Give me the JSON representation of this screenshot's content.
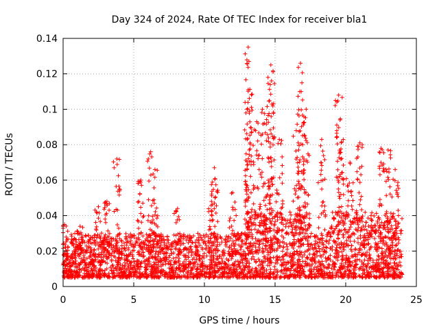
{
  "chart_data": {
    "type": "scatter",
    "title": "Day 324 of 2024, Rate Of TEC Index for receiver bla1",
    "xlabel": "GPS time / hours",
    "ylabel": "ROTI / TECUs",
    "xlim": [
      0,
      25
    ],
    "ylim": [
      0,
      0.14
    ],
    "x_ticks": [
      "0",
      "5",
      "10",
      "15",
      "20",
      "25"
    ],
    "y_ticks": [
      "0",
      "0.02",
      "0.04",
      "0.06",
      "0.08",
      "0.1",
      "0.12",
      "0.14"
    ],
    "grid": true,
    "marker": "+",
    "series": [
      {
        "name": "ROTI",
        "color": "#ff0000",
        "baseline_range": [
          0.005,
          0.03
        ],
        "x_range": [
          0,
          24
        ],
        "peaks": [
          {
            "x": 0.1,
            "y": 0.035
          },
          {
            "x": 1.2,
            "y": 0.034
          },
          {
            "x": 2.5,
            "y": 0.045
          },
          {
            "x": 3.1,
            "y": 0.048
          },
          {
            "x": 3.8,
            "y": 0.072
          },
          {
            "x": 5.5,
            "y": 0.06
          },
          {
            "x": 6.2,
            "y": 0.076
          },
          {
            "x": 6.5,
            "y": 0.066
          },
          {
            "x": 8.1,
            "y": 0.044
          },
          {
            "x": 10.5,
            "y": 0.048
          },
          {
            "x": 10.7,
            "y": 0.067
          },
          {
            "x": 12.0,
            "y": 0.053
          },
          {
            "x": 13.1,
            "y": 0.135
          },
          {
            "x": 13.15,
            "y": 0.127
          },
          {
            "x": 13.1,
            "y": 0.111
          },
          {
            "x": 13.7,
            "y": 0.093
          },
          {
            "x": 14.1,
            "y": 0.1
          },
          {
            "x": 14.5,
            "y": 0.118
          },
          {
            "x": 14.7,
            "y": 0.125
          },
          {
            "x": 14.75,
            "y": 0.116
          },
          {
            "x": 15.3,
            "y": 0.083
          },
          {
            "x": 16.5,
            "y": 0.088
          },
          {
            "x": 16.8,
            "y": 0.126
          },
          {
            "x": 16.85,
            "y": 0.11
          },
          {
            "x": 17.2,
            "y": 0.1
          },
          {
            "x": 18.3,
            "y": 0.083
          },
          {
            "x": 19.5,
            "y": 0.108
          },
          {
            "x": 19.6,
            "y": 0.094
          },
          {
            "x": 20.3,
            "y": 0.07
          },
          {
            "x": 21.0,
            "y": 0.081
          },
          {
            "x": 22.5,
            "y": 0.078
          },
          {
            "x": 23.0,
            "y": 0.077
          },
          {
            "x": 23.5,
            "y": 0.066
          }
        ]
      }
    ]
  }
}
